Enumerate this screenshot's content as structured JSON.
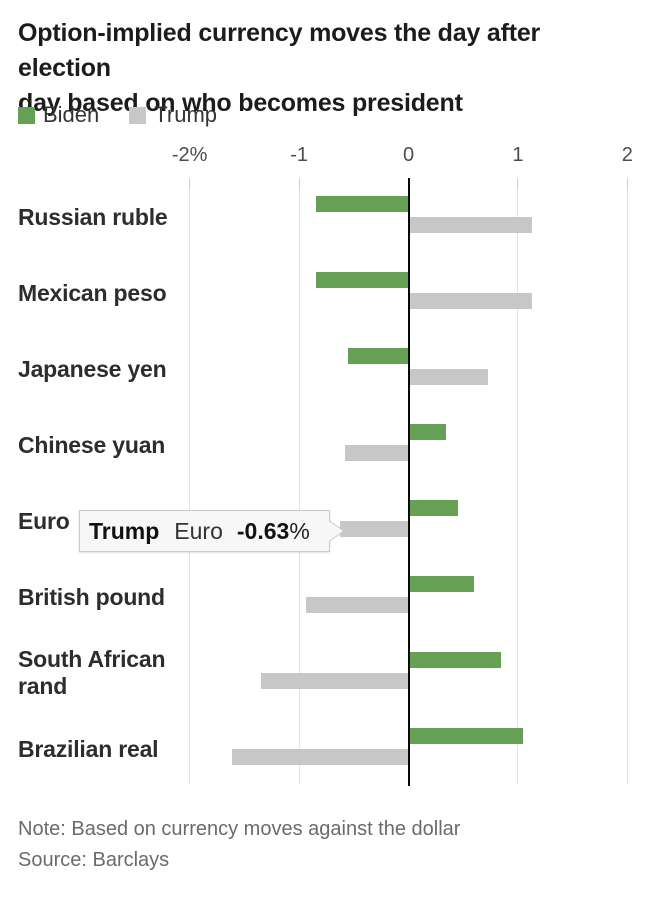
{
  "header": {
    "title_line1": "Option-implied currency moves the day after election",
    "title_line2": "day based on who becomes president"
  },
  "legend": {
    "items": [
      {
        "label": "Biden",
        "color": "#65a055"
      },
      {
        "label": "Trump",
        "color": "#c7c7c7"
      }
    ]
  },
  "chart_data": {
    "type": "bar",
    "orientation": "horizontal",
    "title": "Option-implied currency moves the day after election day based on who becomes president",
    "categories": [
      "Russian ruble",
      "Mexican peso",
      "Japanese yen",
      "Chinese yuan",
      "Euro",
      "British pound",
      "South African rand",
      "Brazilian real"
    ],
    "series": [
      {
        "name": "Biden",
        "color": "#65a055",
        "values": [
          -0.85,
          -0.85,
          -0.55,
          0.34,
          0.45,
          0.6,
          0.85,
          1.05
        ]
      },
      {
        "name": "Trump",
        "color": "#c7c7c7",
        "values": [
          1.13,
          1.13,
          0.73,
          -0.58,
          -0.63,
          -0.94,
          -1.35,
          -1.61
        ]
      }
    ],
    "xlim": [
      -2,
      2
    ],
    "x_ticks": [
      {
        "value": -2,
        "label": "-2%"
      },
      {
        "value": -1,
        "label": "-1"
      },
      {
        "value": 0,
        "label": "0"
      },
      {
        "value": 1,
        "label": "1"
      },
      {
        "value": 2,
        "label": "2"
      }
    ],
    "grid": "vertical-gridlines",
    "legend_position": "top-left",
    "value_unit": "percent",
    "tooltip": {
      "series": "Trump",
      "category": "Euro",
      "value": "-0.63",
      "unit": "%"
    }
  },
  "footer": {
    "note": "Note: Based on currency moves against the dollar",
    "source": "Source: Barclays"
  }
}
